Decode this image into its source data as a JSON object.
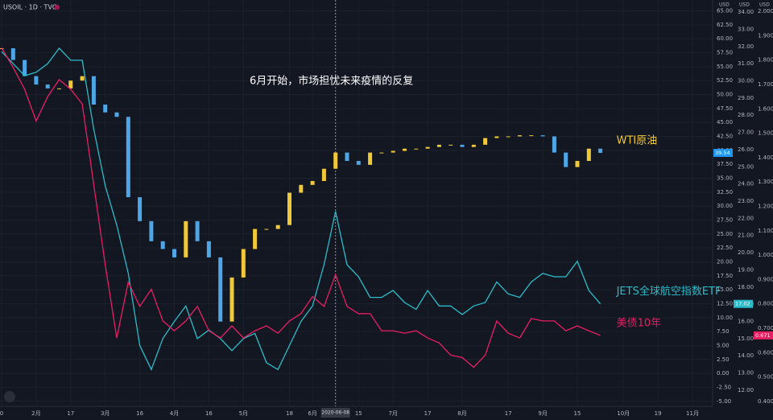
{
  "chart_data": {
    "type": "candlestick-line",
    "title": "USOIL · 1D · TVC",
    "axis_titles": [
      "USD",
      "USD",
      "USD"
    ],
    "annotation": "6月开始，市场担忧未来疫情的反复",
    "crosshair": "2020-06-08",
    "grid": true,
    "categories": [
      "0",
      null,
      null,
      "2月",
      null,
      null,
      "17",
      null,
      null,
      "3月",
      null,
      null,
      "16",
      null,
      null,
      "4月",
      null,
      null,
      "16",
      null,
      null,
      "5月",
      null,
      null,
      null,
      "18",
      null,
      "6月",
      null,
      "2020-06-08",
      null,
      "15",
      null,
      null,
      "7月",
      null,
      null,
      "17",
      null,
      null,
      "8月",
      null,
      null,
      null,
      "17",
      null,
      null,
      "9月",
      null,
      null,
      "15",
      null,
      null,
      null,
      "10月",
      null,
      null,
      "19",
      null,
      null,
      "11月"
    ],
    "ylim": [
      -5.9,
      65.8
    ],
    "y2lim": [
      11.06,
      34.33
    ],
    "y3lim": [
      0.38,
      2.02
    ],
    "yticks": [
      {
        "value": 65,
        "label": "65.00"
      },
      {
        "value": 62.5,
        "label": "62.50"
      },
      {
        "value": 60,
        "label": "60.00"
      },
      {
        "value": 57.5,
        "label": "57.50"
      },
      {
        "value": 55,
        "label": "55.00"
      },
      {
        "value": 52.5,
        "label": "52.50"
      },
      {
        "value": 50,
        "label": "50.00"
      },
      {
        "value": 47.5,
        "label": "47.50"
      },
      {
        "value": 45,
        "label": "45.00"
      },
      {
        "value": 42.5,
        "label": "42.50"
      },
      {
        "value": 40,
        "label": "40.00"
      },
      {
        "value": 37.5,
        "label": "37.50"
      },
      {
        "value": 35,
        "label": "35.00"
      },
      {
        "value": 32.5,
        "label": "32.50"
      },
      {
        "value": 30,
        "label": "30.00"
      },
      {
        "value": 27.5,
        "label": "27.50"
      },
      {
        "value": 25,
        "label": "25.00"
      },
      {
        "value": 22.5,
        "label": "22.50"
      },
      {
        "value": 20,
        "label": "20.00"
      },
      {
        "value": 17.5,
        "label": "17.50"
      },
      {
        "value": 15,
        "label": "15.00"
      },
      {
        "value": 12.5,
        "label": "12.50"
      },
      {
        "value": 10,
        "label": "10.00"
      },
      {
        "value": 7.5,
        "label": "7.50"
      },
      {
        "value": 5,
        "label": "5.00"
      },
      {
        "value": 2.5,
        "label": "2.50"
      },
      {
        "value": 0,
        "label": "0.00"
      },
      {
        "value": -2.5,
        "label": "-2.50"
      },
      {
        "value": -5,
        "label": "-5.00"
      }
    ],
    "y2ticks": [
      {
        "value": 34,
        "label": "34.00"
      },
      {
        "value": 33,
        "label": "33.00"
      },
      {
        "value": 32,
        "label": "32.00"
      },
      {
        "value": 31,
        "label": "31.00"
      },
      {
        "value": 30,
        "label": "30.00"
      },
      {
        "value": 29,
        "label": "29.00"
      },
      {
        "value": 28,
        "label": "28.00"
      },
      {
        "value": 27,
        "label": "27.00"
      },
      {
        "value": 26,
        "label": "26.00"
      },
      {
        "value": 25,
        "label": "25.00"
      },
      {
        "value": 24,
        "label": "24.00"
      },
      {
        "value": 23,
        "label": "23.00"
      },
      {
        "value": 22,
        "label": "22.00"
      },
      {
        "value": 21,
        "label": "21.00"
      },
      {
        "value": 20,
        "label": "20.00"
      },
      {
        "value": 19,
        "label": "19.00"
      },
      {
        "value": 18,
        "label": "18.00"
      },
      {
        "value": 17,
        "label": "17.00"
      },
      {
        "value": 16,
        "label": "16.00"
      },
      {
        "value": 15,
        "label": "15.00"
      },
      {
        "value": 14,
        "label": "14.00"
      },
      {
        "value": 13,
        "label": "13.00"
      },
      {
        "value": 12,
        "label": "12.00"
      }
    ],
    "y3ticks": [
      {
        "value": 2,
        "label": "2.000"
      },
      {
        "value": 1.9,
        "label": "1.900"
      },
      {
        "value": 1.8,
        "label": "1.800"
      },
      {
        "value": 1.7,
        "label": "1.700"
      },
      {
        "value": 1.6,
        "label": "1.600"
      },
      {
        "value": 1.5,
        "label": "1.500"
      },
      {
        "value": 1.4,
        "label": "1.400"
      },
      {
        "value": 1.3,
        "label": "1.300"
      },
      {
        "value": 1.2,
        "label": "1.200"
      },
      {
        "value": 1.1,
        "label": "1.100"
      },
      {
        "value": 1,
        "label": "1.000"
      },
      {
        "value": 0.9,
        "label": "0.900"
      },
      {
        "value": 0.8,
        "label": "0.800"
      },
      {
        "value": 0.7,
        "label": "0.700"
      },
      {
        "value": 0.6,
        "label": "0.600"
      },
      {
        "value": 0.5,
        "label": "0.500"
      },
      {
        "value": 0.4,
        "label": "0.400"
      }
    ],
    "series": [
      {
        "name": "WTI原油",
        "axis": "y",
        "style": "candle",
        "color": "#f0c93a",
        "down_color": "#4ea6e6",
        "badge_color": "#2196f3",
        "last_label": "39.54",
        "values": [
          58.3,
          56.2,
          53.3,
          51.8,
          51.1,
          51.1,
          52.5,
          53.3,
          48.2,
          46.8,
          46.0,
          31.6,
          27.3,
          23.7,
          22.3,
          20.8,
          27.3,
          23.7,
          20.8,
          9.3,
          17.2,
          22.3,
          25.9,
          25.9,
          26.6,
          32.4,
          33.8,
          34.5,
          36.7,
          39.6,
          38.1,
          37.4,
          39.6,
          39.6,
          39.9,
          40.3,
          40.3,
          40.6,
          41.0,
          41.0,
          40.6,
          41.0,
          42.2,
          42.5,
          42.5,
          42.7,
          42.7,
          42.5,
          39.6,
          37.0,
          38.1,
          40.3,
          39.54,
          null,
          null,
          null,
          null,
          null,
          null,
          null,
          null
        ]
      },
      {
        "name": "JETS全球航空指数ETF",
        "axis": "y2",
        "style": "line",
        "color": "#2bbcc9",
        "badge_color": "#2bbcc9",
        "last_label": "17.02",
        "values": [
          31.7,
          31.0,
          30.3,
          30.5,
          31.0,
          31.9,
          31.2,
          31.2,
          27.2,
          23.9,
          21.6,
          18.8,
          14.6,
          13.2,
          15.0,
          16.0,
          16.9,
          15.0,
          15.5,
          15.0,
          14.3,
          15.0,
          15.3,
          13.6,
          13.2,
          14.6,
          16.0,
          16.9,
          19.3,
          22.4,
          19.3,
          18.6,
          17.4,
          17.4,
          17.8,
          17.1,
          16.7,
          17.8,
          16.9,
          16.9,
          16.4,
          16.9,
          17.1,
          18.3,
          17.6,
          17.4,
          18.3,
          18.8,
          18.6,
          18.6,
          19.5,
          17.8,
          17.02,
          null,
          null,
          null,
          null,
          null,
          null,
          null,
          null
        ]
      },
      {
        "name": "美债10年",
        "axis": "y3",
        "style": "line",
        "color": "#e91e63",
        "badge_color": "#e91e63",
        "last_label": "0.671",
        "values": [
          1.85,
          1.77,
          1.68,
          1.55,
          1.65,
          1.72,
          1.68,
          1.62,
          1.29,
          0.96,
          0.66,
          0.89,
          0.79,
          0.86,
          0.73,
          0.69,
          0.73,
          0.79,
          0.69,
          0.66,
          0.71,
          0.66,
          0.69,
          0.71,
          0.68,
          0.73,
          0.76,
          0.83,
          0.79,
          0.92,
          0.79,
          0.76,
          0.76,
          0.69,
          0.69,
          0.68,
          0.69,
          0.66,
          0.64,
          0.59,
          0.58,
          0.54,
          0.59,
          0.73,
          0.68,
          0.66,
          0.74,
          0.73,
          0.73,
          0.69,
          0.71,
          0.69,
          0.671,
          null,
          null,
          null,
          null,
          null,
          null,
          null,
          null
        ]
      }
    ]
  }
}
